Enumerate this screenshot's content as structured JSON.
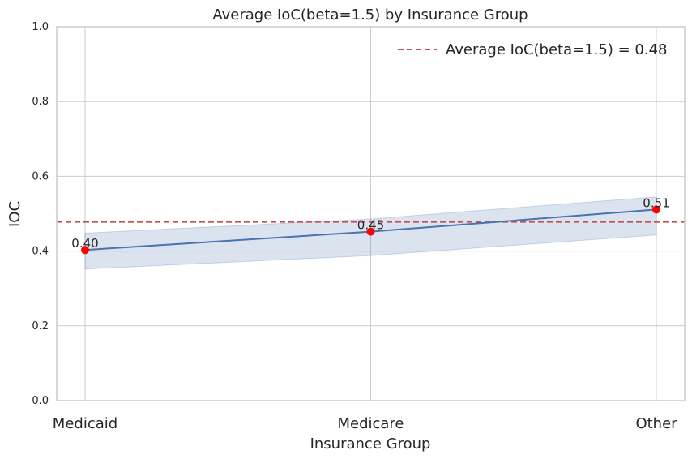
{
  "chart_data": {
    "type": "line",
    "title": "Average IoC(beta=1.5) by Insurance Group",
    "xlabel": "Insurance Group",
    "ylabel": "IOC",
    "ylim": [
      0,
      1
    ],
    "yticks": [
      "0.0",
      "0.2",
      "0.4",
      "0.6",
      "0.8",
      "1.0"
    ],
    "categories": [
      "Medicaid",
      "Medicare",
      "Other"
    ],
    "series": [
      {
        "values": [
          0.403,
          0.452,
          0.511
        ],
        "ci_lower": [
          0.352,
          0.388,
          0.443
        ],
        "ci_upper": [
          0.448,
          0.486,
          0.545
        ],
        "labels": [
          "0.40",
          "0.45",
          "0.51"
        ],
        "line_color": "#4c72b0",
        "band_color": "#4c72b0",
        "marker_color": "#ff0000"
      }
    ],
    "reference_line": {
      "value": 0.478,
      "label": "Average IoC(beta=1.5) = 0.48",
      "color": "#c44e52",
      "style": "dashed"
    },
    "legend_position": "top-right",
    "grid": true
  }
}
